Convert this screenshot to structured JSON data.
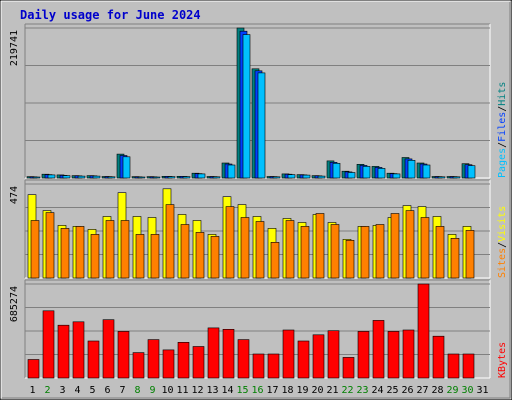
{
  "chart_data": {
    "type": "bar",
    "title": "Daily usage for June 2024",
    "days": [
      "1",
      "2",
      "3",
      "4",
      "5",
      "6",
      "7",
      "8",
      "9",
      "10",
      "11",
      "12",
      "13",
      "14",
      "15",
      "16",
      "17",
      "18",
      "19",
      "20",
      "21",
      "22",
      "23",
      "24",
      "25",
      "26",
      "27",
      "28",
      "29",
      "30",
      "31"
    ],
    "weekend_days": [
      "2",
      "8",
      "9",
      "15",
      "16",
      "22",
      "23",
      "29",
      "30"
    ],
    "panels": [
      {
        "id": "hits",
        "max_label": "219741",
        "ylim": [
          0,
          219741
        ],
        "legend": [
          {
            "label": "Pages",
            "color": "#00c0ff"
          },
          {
            "label": "/",
            "color": "#000000"
          },
          {
            "label": "Files",
            "color": "#0040ff"
          },
          {
            "label": "/",
            "color": "#000000"
          },
          {
            "label": "Hits",
            "color": "#008080"
          }
        ],
        "series": [
          {
            "name": "Hits",
            "color": "#008080",
            "values": [
              2000,
              5500,
              4500,
              3500,
              3500,
              2200,
              35000,
              2000,
              2000,
              2500,
              2500,
              7000,
              2200,
              22000,
              219741,
              160000,
              2200,
              6000,
              5000,
              3500,
              25000,
              10000,
              20000,
              17000,
              7000,
              30000,
              22000,
              2200,
              2200,
              21000,
              0
            ]
          },
          {
            "name": "Files",
            "color": "#0040ff",
            "values": [
              1800,
              5000,
              4000,
              3200,
              3200,
              2000,
              33000,
              1800,
              1800,
              2300,
              2300,
              6500,
              2000,
              20500,
              215000,
              157000,
              2000,
              5500,
              4600,
              3200,
              23000,
              9000,
              18500,
              15500,
              6500,
              28000,
              20500,
              2000,
              2000,
              19500,
              0
            ]
          },
          {
            "name": "Pages",
            "color": "#00c0ff",
            "values": [
              1500,
              4500,
              3500,
              2800,
              2800,
              1700,
              31000,
              1500,
              1500,
              2000,
              2000,
              6000,
              1700,
              19000,
              210000,
              154000,
              1700,
              5000,
              4200,
              2800,
              21500,
              8000,
              17000,
              14000,
              6000,
              26000,
              19000,
              1700,
              1700,
              18000,
              0
            ]
          }
        ]
      },
      {
        "id": "visits",
        "max_label": "474",
        "ylim": [
          0,
          474
        ],
        "legend": [
          {
            "label": "Sites",
            "color": "#ff8000"
          },
          {
            "label": "/",
            "color": "#000000"
          },
          {
            "label": "Visits",
            "color": "#ffff00"
          }
        ],
        "series": [
          {
            "name": "Visits",
            "color": "#ffff00",
            "values": [
              420,
              340,
              265,
              260,
              245,
              310,
              430,
              310,
              305,
              450,
              320,
              290,
              220,
              410,
              370,
              310,
              250,
              300,
              280,
              320,
              280,
              195,
              260,
              265,
              305,
              365,
              360,
              310,
              220,
              260,
              0
            ]
          },
          {
            "name": "Sites",
            "color": "#ff8000",
            "values": [
              290,
              330,
              250,
              260,
              220,
              290,
              290,
              220,
              220,
              370,
              270,
              230,
              210,
              360,
              305,
              285,
              180,
              290,
              260,
              325,
              270,
              190,
              260,
              270,
              325,
              340,
              305,
              260,
              200,
              240,
              0
            ]
          }
        ]
      },
      {
        "id": "kbytes",
        "max_label": "685274",
        "ylim": [
          0,
          685274
        ],
        "legend": [
          {
            "label": "KBytes",
            "color": "#ff0000"
          }
        ],
        "series": [
          {
            "name": "KBytes",
            "color": "#ff0000",
            "values": [
              135000,
              490000,
              385000,
              410000,
              270000,
              425000,
              340000,
              185000,
              280000,
              205000,
              260000,
              230000,
              365000,
              355000,
              280000,
              175000,
              175000,
              350000,
              270000,
              315000,
              345000,
              150000,
              340000,
              420000,
              340000,
              350000,
              685274,
              305000,
              175000,
              175000,
              0
            ]
          }
        ]
      }
    ],
    "colors": {
      "background": "#c0c0c0",
      "gridline": "#808080",
      "weekday_label": "#008080",
      "weekend_label": "#008000",
      "title": "#0000cc"
    }
  }
}
